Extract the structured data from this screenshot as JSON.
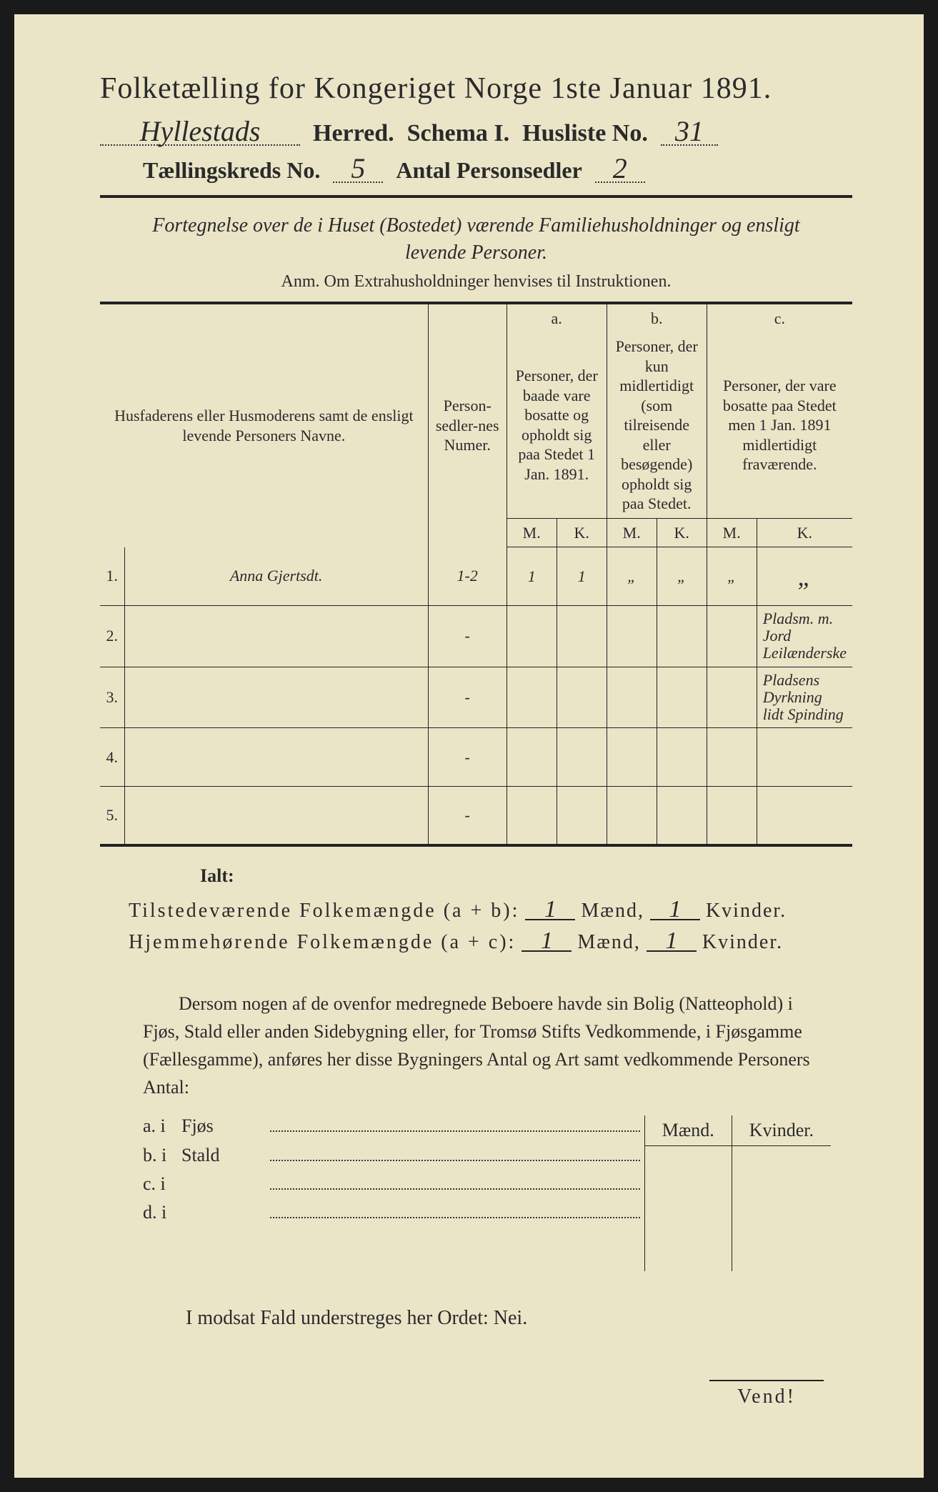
{
  "colors": {
    "paper": "#ebe5c8",
    "ink": "#2a2a2a",
    "frame": "#1a1a1a"
  },
  "title": "Folketælling for Kongeriget Norge 1ste Januar 1891.",
  "header": {
    "herred_value": "Hyllestads",
    "herred_label": "Herred.",
    "schema_label": "Schema I.",
    "husliste_label": "Husliste No.",
    "husliste_value": "31",
    "kreds_label": "Tællingskreds No.",
    "kreds_value": "5",
    "antal_label": "Antal Personsedler",
    "antal_value": "2"
  },
  "subtitle": "Fortegnelse over de i Huset (Bostedet) værende Familiehusholdninger og ensligt levende Personer.",
  "anm": "Anm.  Om Extrahusholdninger henvises til Instruktionen.",
  "table": {
    "col_name": "Husfaderens eller Husmoderens samt de ensligt levende Personers Navne.",
    "col_num": "Person-sedler-nes Numer.",
    "abc": {
      "a": "a.",
      "b": "b.",
      "c": "c."
    },
    "desc_a": "Personer, der baade vare bosatte og opholdt sig paa Stedet 1 Jan. 1891.",
    "desc_b": "Personer, der kun midlertidigt (som tilreisende eller besøgende) opholdt sig paa Stedet.",
    "desc_c": "Personer, der vare bosatte paa Stedet men 1 Jan. 1891 midlertidigt fraværende.",
    "M": "M.",
    "K": "K.",
    "rows": [
      {
        "n": "1.",
        "name": "Anna Gjertsdt.",
        "num": "1-2",
        "aM": "1",
        "aK": "1",
        "bM": "„",
        "bK": "„",
        "cM": "„",
        "cK": "„",
        "note_c": ""
      },
      {
        "n": "2.",
        "name": "",
        "num": "-",
        "aM": "",
        "aK": "",
        "bM": "",
        "bK": "",
        "cM": "",
        "cK": "",
        "note_c": "Pladsm. m. Jord Leilænderske"
      },
      {
        "n": "3.",
        "name": "",
        "num": "-",
        "aM": "",
        "aK": "",
        "bM": "",
        "bK": "",
        "cM": "",
        "cK": "",
        "note_c": "Pladsens Dyrkning lidt Spinding"
      },
      {
        "n": "4.",
        "name": "",
        "num": "-",
        "aM": "",
        "aK": "",
        "bM": "",
        "bK": "",
        "cM": "",
        "cK": "",
        "note_c": ""
      },
      {
        "n": "5.",
        "name": "",
        "num": "-",
        "aM": "",
        "aK": "",
        "bM": "",
        "bK": "",
        "cM": "",
        "cK": "",
        "note_c": ""
      }
    ]
  },
  "ialt": "Ialt:",
  "totals": {
    "line1_label": "Tilstedeværende Folkemængde (a + b):",
    "line1_m": "1",
    "line1_k": "1",
    "line2_label": "Hjemmehørende Folkemængde (a + c):",
    "line2_m": "1",
    "line2_k": "1",
    "maend": "Mænd,",
    "kvinder": "Kvinder."
  },
  "para": "Dersom nogen af de ovenfor medregnede Beboere havde sin Bolig (Natteophold) i Fjøs, Stald eller anden Sidebygning eller, for Tromsø Stifts Vedkommende, i Fjøsgamme (Fællesgamme), anføres her disse Bygningers Antal og Art samt vedkommende Personers Antal:",
  "bld": {
    "maend": "Mænd.",
    "kvinder": "Kvinder.",
    "rows": [
      {
        "lbl": "a.  i",
        "txt": "Fjøs"
      },
      {
        "lbl": "b.  i",
        "txt": "Stald"
      },
      {
        "lbl": "c.  i",
        "txt": ""
      },
      {
        "lbl": "d.  i",
        "txt": ""
      }
    ]
  },
  "nei": "I modsat Fald understreges her Ordet: Nei.",
  "vend": "Vend!"
}
